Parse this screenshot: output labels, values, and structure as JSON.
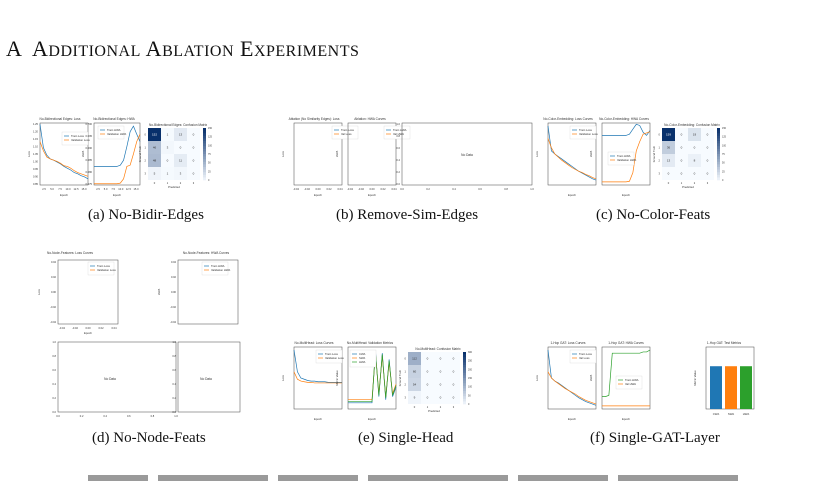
{
  "section": {
    "number": "A",
    "title": "Additional Ablation Experiments"
  },
  "captions": [
    "(a) No-Bidir-Edges",
    "(b) Remove-Sim-Edges",
    "(c) No-Color-Feats",
    "(d) No-Node-Feats",
    "(e) Single-Head",
    "(f) Single-GAT-Layer"
  ],
  "panels": {
    "a": {
      "titles": [
        "No-Bidirectional Edges: Loss",
        "No-Bidirectional Edges: HWA",
        "No-Bidirectional Edges: Confusion Matrix"
      ],
      "legend_loss": [
        "Train Loss",
        "Validation Loss"
      ],
      "legend_hwa": [
        "Train HWA",
        "Validation HWA"
      ],
      "xlabel": "Epoch",
      "ylabel_loss": "Loss",
      "ylabel_hwa": "HWA",
      "cm_xlabel": "Predicted",
      "cm_ylabel": "Ground Truth",
      "cm_values": [
        [
          "152",
          "1",
          "13",
          "0"
        ],
        [
          "46",
          "3",
          "0",
          "0"
        ],
        [
          "48",
          "0",
          "11",
          "0"
        ],
        [
          "5",
          "1",
          "3",
          "0"
        ]
      ],
      "loss_yticks": [
        "1.25",
        "1.20",
        "1.15",
        "1.10",
        "1.05",
        "1.00",
        "0.95",
        "0.90",
        "0.85"
      ],
      "hwa_yticks": [
        "0.700",
        "0.695",
        "0.690",
        "0.685",
        "0.680",
        "0.675"
      ],
      "xticks": [
        "2.5",
        "5.0",
        "7.5",
        "10.0",
        "12.5",
        "15.0"
      ],
      "cbar_ticks": [
        "150",
        "125",
        "100",
        "75",
        "50",
        "25",
        "0"
      ]
    },
    "b": {
      "titles": [
        "Ablation (No Similarity Edges): Loss",
        "Ablation: HWA Curves"
      ],
      "legend_loss": [
        "Train Loss",
        "Val Loss"
      ],
      "legend_hwa": [
        "Train HWA",
        "Val HWA"
      ],
      "xlabel": "Epoch",
      "ylabel_loss": "Loss",
      "ylabel_hwa": "HWA",
      "nodata": "No Data",
      "xticks": [
        "-0.04",
        "-0.02",
        "0.00",
        "0.02",
        "0.04"
      ],
      "unit_ticks": [
        "0.0",
        "0.2",
        "0.4",
        "0.6",
        "0.8",
        "1.0"
      ]
    },
    "c": {
      "titles": [
        "No-Color-Embedding: Loss Curves",
        "No-Color-Embedding: HWA Curves",
        "No-Color-Embedding: Confusion Matrix"
      ],
      "legend_loss": [
        "Train Loss",
        "Validation Loss"
      ],
      "legend_hwa": [
        "Train HWA",
        "Validation HWA"
      ],
      "xlabel": "Epoch",
      "ylabel_loss": "Loss",
      "ylabel_hwa": "HWA",
      "cm_xlabel": "Predicted",
      "cm_ylabel": "Ground Truth",
      "cm_values": [
        [
          "159",
          "0",
          "19",
          "0"
        ],
        [
          "36",
          "0",
          "0",
          "0"
        ],
        [
          "13",
          "0",
          "8",
          "0"
        ],
        [
          "0",
          "0",
          "0",
          "0"
        ]
      ],
      "cbar_ticks": [
        "150",
        "125",
        "100",
        "75",
        "50",
        "25",
        "0"
      ]
    },
    "d": {
      "titles": [
        "No-Node-Features: Loss Curves",
        "No-Node-Features: HWA Curves"
      ],
      "legend_loss": [
        "Train Loss",
        "Validation Loss"
      ],
      "legend_hwa": [
        "Train HWA",
        "Validation HWA"
      ],
      "xlabel": "Epoch",
      "ylabel_loss": "Loss",
      "ylabel_hwa": "HWA",
      "yticks": [
        "0.04",
        "0.02",
        "0.00",
        "-0.02",
        "-0.04"
      ],
      "xticks": [
        "-0.04",
        "-0.02",
        "0.00",
        "0.02",
        "0.04"
      ],
      "nodata": "No Data",
      "unit_ticks": [
        "0.0",
        "0.2",
        "0.4",
        "0.6",
        "0.8",
        "1.0"
      ]
    },
    "e": {
      "titles": [
        "No-MultiHead: Loss Curves",
        "No-MultiHead: Validation Metrics",
        "No-MultiHead: Confusion Matrix"
      ],
      "legend_loss": [
        "Train Loss",
        "Validation Loss"
      ],
      "legend_metrics": [
        "CWA",
        "SWA",
        "HWA"
      ],
      "xlabel": "Epoch",
      "ylabel_loss": "Loss",
      "ylabel_metric": "Metric Value",
      "cm_xlabel": "Predicted",
      "cm_ylabel": "Ground Truth",
      "cm_values": [
        [
          "112",
          "0",
          "0",
          "0"
        ],
        [
          "60",
          "0",
          "0",
          "0"
        ],
        [
          "54",
          "0",
          "0",
          "0"
        ],
        [
          "9",
          "0",
          "0",
          "0"
        ]
      ],
      "cbar_ticks": [
        "300",
        "250",
        "200",
        "150",
        "100",
        "50",
        "0"
      ]
    },
    "f": {
      "titles": [
        "1-Hop GAT: Loss Curves",
        "1-Hop GAT: HWA Curves",
        "1-Hop GAT: Test Metrics"
      ],
      "legend_loss": [
        "Train Loss",
        "Val Loss"
      ],
      "legend_hwa": [
        "Train HWA",
        "Val HWA"
      ],
      "xlabel": "Epoch",
      "ylabel_loss": "Loss",
      "ylabel_hwa": "HWA",
      "bar_categories": [
        "CWA",
        "SWA",
        "HWA"
      ],
      "bar_values": [
        0.69,
        0.69,
        0.69
      ],
      "bar_colors": [
        "#1f77b4",
        "#ff7f0e",
        "#2ca02c"
      ],
      "bar_ylabel": "Metric Value"
    }
  },
  "colors": {
    "train": "#1f77b4",
    "val": "#ff7f0e",
    "green": "#2ca02c",
    "cm_dark": "#08306b",
    "cm_light": "#f7fbff"
  }
}
